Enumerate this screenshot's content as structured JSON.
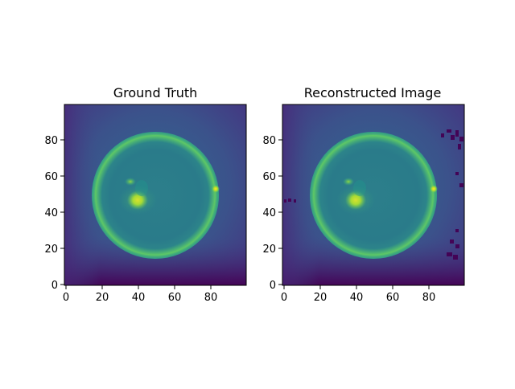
{
  "figure": {
    "panels": [
      {
        "title": "Ground Truth",
        "x_ticks": [
          "0",
          "20",
          "40",
          "60",
          "80"
        ],
        "y_ticks": [
          "0",
          "20",
          "40",
          "60",
          "80"
        ]
      },
      {
        "title": "Reconstructed Image",
        "x_ticks": [
          "0",
          "20",
          "40",
          "60",
          "80"
        ],
        "y_ticks": [
          "0",
          "20",
          "40",
          "60",
          "80"
        ]
      }
    ],
    "colors": {
      "dark": "#440154",
      "mid_dark": "#31688e",
      "mid": "#21918c",
      "light": "#5ec962",
      "bright": "#fde725"
    }
  }
}
